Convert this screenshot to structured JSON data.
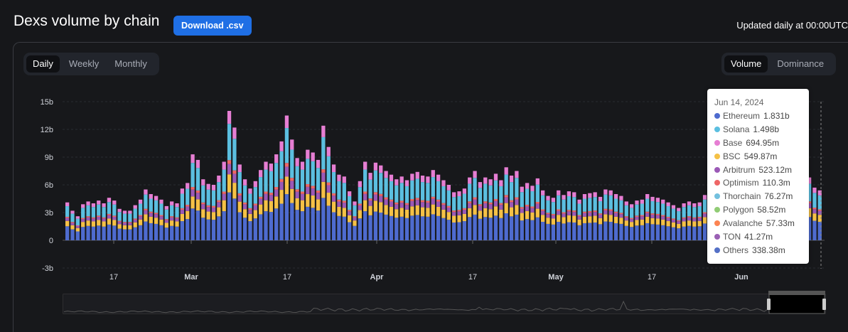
{
  "header": {
    "title": "Dexs volume by chain",
    "download_label": "Download .csv",
    "updated": "Updated daily at 00:00UTC"
  },
  "period_tabs": [
    "Daily",
    "Weekly",
    "Monthly"
  ],
  "period_active": "Daily",
  "mode_tabs": [
    "Volume",
    "Dominance"
  ],
  "mode_active": "Volume",
  "tooltip": {
    "date": "Jun 14, 2024",
    "rows": [
      {
        "name": "Ethereum",
        "value": "1.831b",
        "color": "#4e6bcf"
      },
      {
        "name": "Solana",
        "value": "1.498b",
        "color": "#5bbfe0"
      },
      {
        "name": "Base",
        "value": "694.95m",
        "color": "#e67ed3"
      },
      {
        "name": "BSC",
        "value": "549.87m",
        "color": "#f5c146"
      },
      {
        "name": "Arbitrum",
        "value": "523.12m",
        "color": "#9b59b6"
      },
      {
        "name": "Optimism",
        "value": "110.3m",
        "color": "#ee6666"
      },
      {
        "name": "Thorchain",
        "value": "76.27m",
        "color": "#73c0de"
      },
      {
        "name": "Polygon",
        "value": "58.52m",
        "color": "#91cc75"
      },
      {
        "name": "Avalanche",
        "value": "57.33m",
        "color": "#fc8452"
      },
      {
        "name": "TON",
        "value": "41.27m",
        "color": "#9a60b4"
      },
      {
        "name": "Others",
        "value": "338.38m",
        "color": "#5470c6"
      }
    ]
  },
  "chart_data": {
    "type": "bar",
    "stacked": true,
    "y_ticks": [
      "15b",
      "12b",
      "9b",
      "6b",
      "3b",
      "0",
      "-3b"
    ],
    "ylim": [
      -3,
      15
    ],
    "y_unit": "billions USD",
    "x_ticks": [
      "17",
      "Mar",
      "17",
      "Apr",
      "17",
      "May",
      "17",
      "Jun"
    ],
    "series_names": [
      "Ethereum",
      "BSC",
      "Arbitrum",
      "Optimism",
      "Solana",
      "Base"
    ],
    "series_colors": [
      "#4e6bcf",
      "#f5c146",
      "#9b59b6",
      "#ee6666",
      "#5bbfe0",
      "#e67ed3"
    ],
    "daily_totals_b": [
      4.1,
      3.2,
      2.6,
      3.9,
      4.2,
      4.0,
      4.3,
      4.0,
      4.6,
      4.3,
      3.4,
      3.2,
      3.2,
      3.8,
      4.4,
      5.5,
      5.0,
      4.8,
      4.4,
      3.7,
      4.2,
      4.0,
      5.6,
      6.2,
      9.3,
      8.7,
      6.6,
      6.1,
      6.0,
      7.0,
      8.5,
      14.0,
      12.2,
      8.2,
      6.6,
      5.6,
      6.4,
      7.6,
      8.5,
      8.3,
      9.3,
      10.7,
      13.5,
      10.9,
      8.9,
      8.5,
      9.8,
      9.5,
      8.7,
      12.4,
      10.1,
      8.2,
      7.1,
      6.9,
      5.3,
      4.2,
      6.4,
      8.5,
      7.3,
      8.4,
      8.1,
      7.5,
      7.1,
      6.6,
      6.9,
      6.5,
      7.2,
      7.4,
      7.0,
      6.9,
      7.6,
      7.1,
      6.5,
      6.0,
      5.2,
      5.3,
      5.6,
      6.8,
      7.5,
      6.3,
      6.8,
      6.6,
      7.2,
      6.5,
      7.9,
      7.0,
      7.5,
      5.8,
      6.2,
      5.9,
      6.7,
      5.4,
      4.8,
      4.6,
      5.4,
      4.9,
      5.3,
      5.2,
      4.4,
      5.0,
      5.1,
      5.2,
      4.7,
      5.5,
      5.4,
      5.0,
      4.8,
      4.2,
      3.9,
      4.3,
      4.4,
      5.0,
      4.7,
      4.6,
      4.4,
      4.1,
      3.8,
      3.5,
      4.0,
      4.2,
      4.0,
      4.1,
      4.9,
      4.4,
      5.9,
      4.5,
      6.5,
      6.0,
      5.9,
      7.9,
      7.4,
      8.9,
      7.2,
      11.4,
      9.1,
      7.0,
      5.6,
      5.1,
      5.2,
      4.8,
      5.4,
      6.2,
      6.8,
      5.7,
      5.4
    ]
  }
}
